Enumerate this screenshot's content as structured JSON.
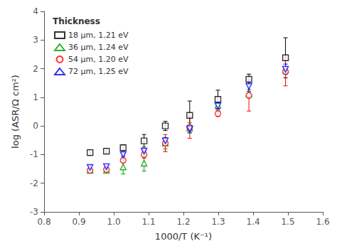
{
  "chart_data": {
    "type": "scatter",
    "xlabel": "1000/T (K⁻¹)",
    "ylabel": "log (ASR/Ω cm²)",
    "xlim": [
      0.8,
      1.6
    ],
    "ylim": [
      -3,
      4
    ],
    "xticks": [
      0.8,
      0.9,
      {
        "value": 1.0,
        "label": "1.0"
      },
      1.1,
      1.2,
      1.3,
      1.4,
      1.5,
      1.6
    ],
    "yticks": [
      -3,
      -2,
      -1,
      0,
      1,
      2,
      3,
      4
    ],
    "grid": false,
    "legend": "upper left",
    "legend_title": "Thickness",
    "series": [
      {
        "name": "18 μm, 1.21 eV",
        "color": "black",
        "marker": "square",
        "x": [
          0.932,
          0.979,
          1.027,
          1.087,
          1.148,
          1.218,
          1.299,
          1.388,
          1.493
        ],
        "values": [
          -0.93,
          -0.88,
          -0.76,
          -0.52,
          0.0,
          0.37,
          0.93,
          1.63,
          2.38
        ],
        "yerr": [
          0.1,
          0.1,
          0.1,
          0.22,
          0.16,
          0.5,
          0.32,
          0.18,
          0.7
        ]
      },
      {
        "name": "36 μm, 1.24 eV",
        "color": "#009900",
        "marker": "triangle",
        "x": [
          0.932,
          0.979,
          1.027,
          1.087,
          1.148,
          1.218,
          1.299,
          1.388,
          1.493
        ],
        "values": [
          -1.55,
          -1.55,
          -1.43,
          -1.3,
          -0.6,
          -0.07,
          0.72,
          1.12,
          1.95
        ],
        "yerr": [
          0.04,
          0.04,
          0.25,
          0.28,
          0.2,
          0.18,
          0.12,
          0.15,
          0.1
        ]
      },
      {
        "name": "54 μm, 1.20 eV",
        "color": "red",
        "marker": "circle",
        "x": [
          0.932,
          0.979,
          1.027,
          1.087,
          1.148,
          1.218,
          1.299,
          1.388,
          1.493
        ],
        "values": [
          -1.55,
          -1.52,
          -1.2,
          -1.0,
          -0.6,
          -0.05,
          0.43,
          1.07,
          1.9
        ],
        "yerr": [
          0.04,
          0.04,
          0.08,
          0.12,
          0.3,
          0.38,
          0.1,
          0.55,
          0.5
        ]
      },
      {
        "name": "72 μm, 1.25 eV",
        "color": "blue",
        "marker": "triangle_down",
        "x": [
          0.932,
          0.979,
          1.027,
          1.087,
          1.148,
          1.218,
          1.299,
          1.388,
          1.493
        ],
        "values": [
          -1.45,
          -1.42,
          -1.0,
          -0.88,
          -0.52,
          -0.1,
          0.7,
          1.38,
          1.98
        ],
        "yerr": [
          0.06,
          0.06,
          0.06,
          0.06,
          0.1,
          0.12,
          0.12,
          0.18,
          0.18
        ]
      }
    ]
  }
}
